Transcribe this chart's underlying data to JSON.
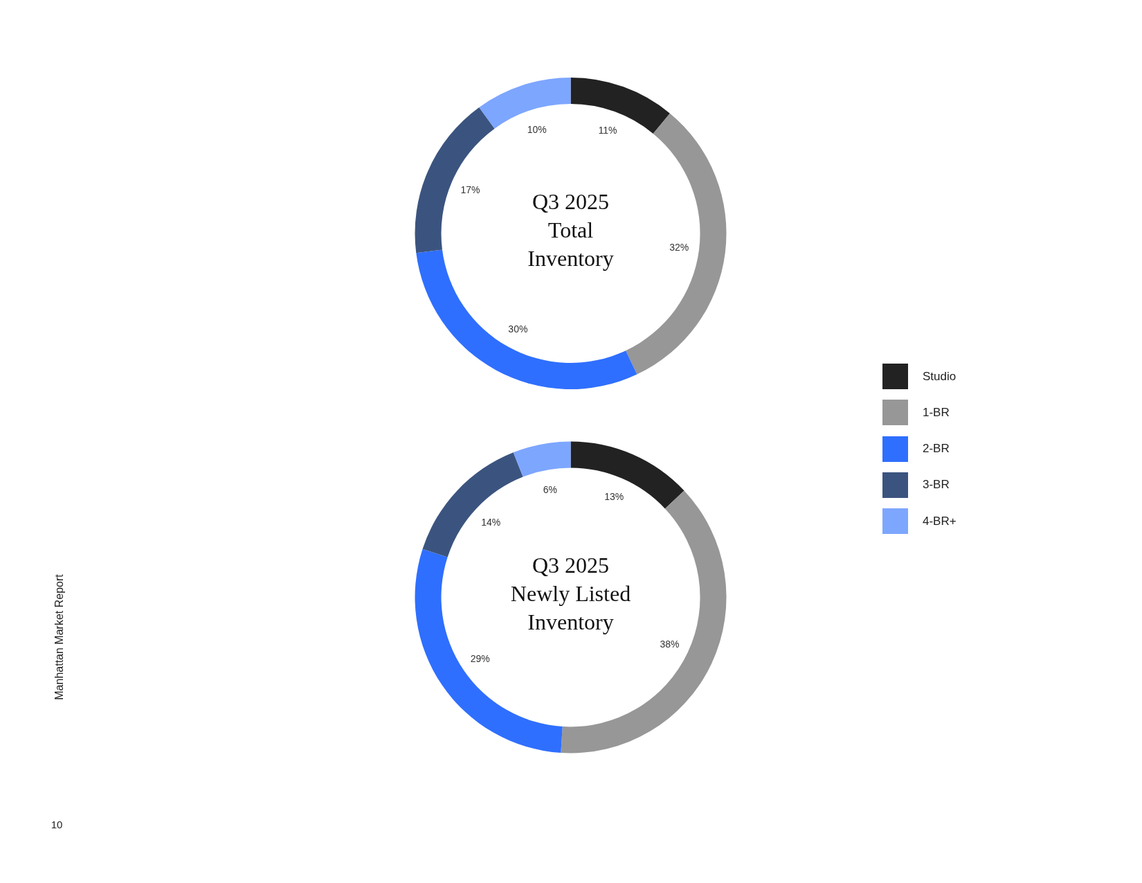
{
  "chart_data": {
    "type": "donut",
    "categories": [
      "Studio",
      "1-BR",
      "2-BR",
      "3-BR",
      "4-BR+"
    ],
    "colors": [
      "#222222",
      "#979797",
      "#2f6fff",
      "#3b547f",
      "#7da6ff"
    ],
    "series": [
      {
        "name": "Q3 2025 Total Inventory",
        "values": [
          11,
          32,
          30,
          17,
          10
        ],
        "value_labels": [
          "11%",
          "32%",
          "30%",
          "17%",
          "10%"
        ]
      },
      {
        "name": "Q3 2025 Newly Listed Inventory",
        "values": [
          13,
          38,
          29,
          14,
          6
        ],
        "value_labels": [
          "13%",
          "38%",
          "29%",
          "14%",
          "6%"
        ]
      }
    ],
    "legend": "right",
    "annotations": [
      "Manhattan Market Report",
      "10"
    ]
  }
}
